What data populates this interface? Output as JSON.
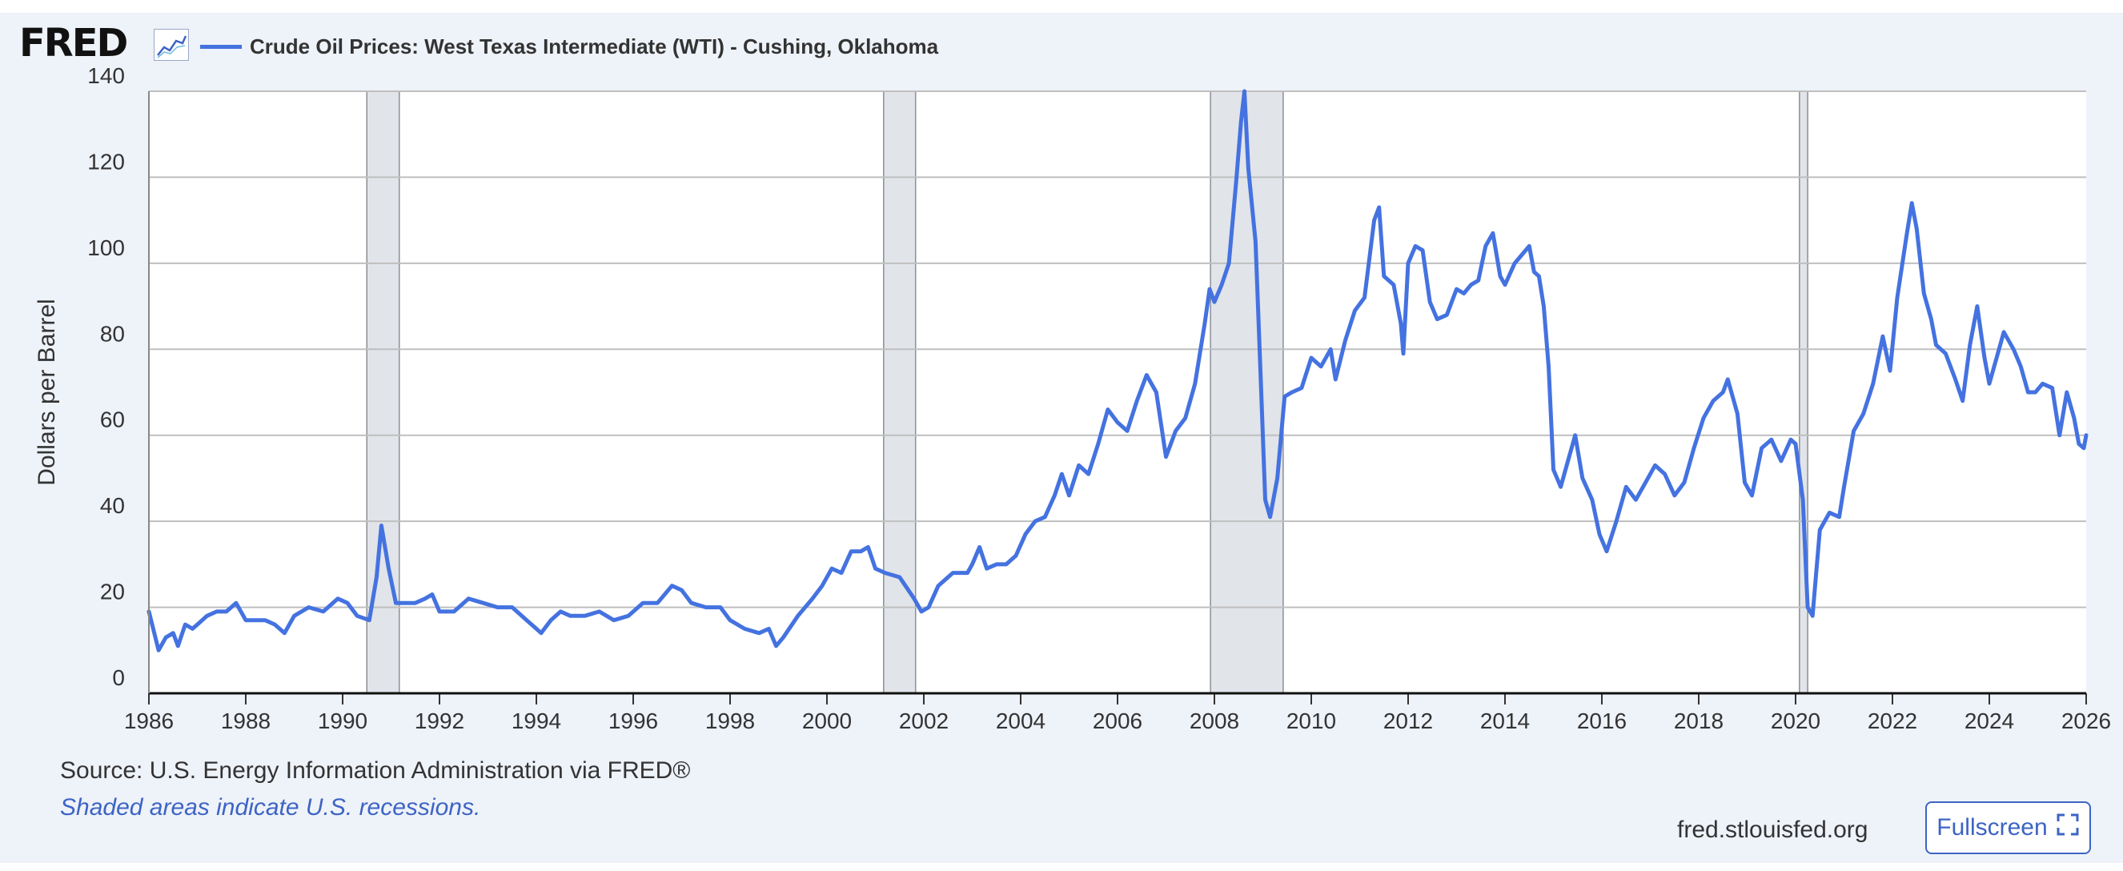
{
  "brand": {
    "logo_text": "FRED",
    "graph_icon": "line-graph-icon"
  },
  "colors": {
    "series": "#4472e0",
    "recession": "#e1e4e9",
    "background": "#eef2f9",
    "link": "#3d64c4"
  },
  "footer": {
    "source": "Source: U.S. Energy Information Administration via FRED®",
    "recession_note": "Shaded areas indicate U.S. recessions.",
    "site": "fred.stlouisfed.org",
    "fullscreen_label": "Fullscreen",
    "fullscreen_icon": "fullscreen-icon"
  },
  "chart_data": {
    "type": "line",
    "title": "",
    "ylabel": "Dollars per Barrel",
    "xlabel": "",
    "xlim": [
      1986,
      2026
    ],
    "ylim": [
      0,
      140
    ],
    "x_ticks": [
      "1986",
      "1988",
      "1990",
      "1992",
      "1994",
      "1996",
      "1998",
      "2000",
      "2002",
      "2004",
      "2006",
      "2008",
      "2010",
      "2012",
      "2014",
      "2016",
      "2018",
      "2020",
      "2022",
      "2024",
      "2026"
    ],
    "y_ticks": [
      "0",
      "20",
      "40",
      "60",
      "80",
      "100",
      "120",
      "140"
    ],
    "grid": true,
    "legend": "top-left",
    "recessions": [
      [
        1990.5,
        1991.17
      ],
      [
        2001.17,
        2001.83
      ],
      [
        2007.92,
        2009.42
      ],
      [
        2020.08,
        2020.25
      ]
    ],
    "series": [
      {
        "name": "Crude Oil Prices: West Texas Intermediate (WTI) - Cushing, Oklahoma",
        "points": [
          [
            1986.0,
            19
          ],
          [
            1986.2,
            10
          ],
          [
            1986.35,
            13
          ],
          [
            1986.5,
            14
          ],
          [
            1986.6,
            11
          ],
          [
            1986.75,
            16
          ],
          [
            1986.9,
            15
          ],
          [
            1987.0,
            16
          ],
          [
            1987.2,
            18
          ],
          [
            1987.4,
            19
          ],
          [
            1987.6,
            19
          ],
          [
            1987.8,
            21
          ],
          [
            1988.0,
            17
          ],
          [
            1988.2,
            17
          ],
          [
            1988.4,
            17
          ],
          [
            1988.6,
            16
          ],
          [
            1988.8,
            14
          ],
          [
            1989.0,
            18
          ],
          [
            1989.3,
            20
          ],
          [
            1989.6,
            19
          ],
          [
            1989.9,
            22
          ],
          [
            1990.1,
            21
          ],
          [
            1990.3,
            18
          ],
          [
            1990.55,
            17
          ],
          [
            1990.7,
            27
          ],
          [
            1990.8,
            39
          ],
          [
            1990.95,
            29
          ],
          [
            1991.1,
            21
          ],
          [
            1991.3,
            21
          ],
          [
            1991.5,
            21
          ],
          [
            1991.7,
            22
          ],
          [
            1991.85,
            23
          ],
          [
            1992.0,
            19
          ],
          [
            1992.3,
            19
          ],
          [
            1992.6,
            22
          ],
          [
            1992.9,
            21
          ],
          [
            1993.2,
            20
          ],
          [
            1993.5,
            20
          ],
          [
            1993.8,
            17
          ],
          [
            1994.0,
            15
          ],
          [
            1994.1,
            14
          ],
          [
            1994.3,
            17
          ],
          [
            1994.5,
            19
          ],
          [
            1994.7,
            18
          ],
          [
            1995.0,
            18
          ],
          [
            1995.3,
            19
          ],
          [
            1995.6,
            17
          ],
          [
            1995.9,
            18
          ],
          [
            1996.2,
            21
          ],
          [
            1996.5,
            21
          ],
          [
            1996.8,
            25
          ],
          [
            1997.0,
            24
          ],
          [
            1997.2,
            21
          ],
          [
            1997.5,
            20
          ],
          [
            1997.8,
            20
          ],
          [
            1998.0,
            17
          ],
          [
            1998.3,
            15
          ],
          [
            1998.6,
            14
          ],
          [
            1998.8,
            15
          ],
          [
            1998.95,
            11
          ],
          [
            1999.1,
            13
          ],
          [
            1999.4,
            18
          ],
          [
            1999.7,
            22
          ],
          [
            1999.9,
            25
          ],
          [
            2000.1,
            29
          ],
          [
            2000.3,
            28
          ],
          [
            2000.5,
            33
          ],
          [
            2000.7,
            33
          ],
          [
            2000.85,
            34
          ],
          [
            2001.0,
            29
          ],
          [
            2001.2,
            28
          ],
          [
            2001.5,
            27
          ],
          [
            2001.8,
            22
          ],
          [
            2001.95,
            19
          ],
          [
            2002.1,
            20
          ],
          [
            2002.3,
            25
          ],
          [
            2002.6,
            28
          ],
          [
            2002.9,
            28
          ],
          [
            2003.0,
            30
          ],
          [
            2003.15,
            34
          ],
          [
            2003.3,
            29
          ],
          [
            2003.5,
            30
          ],
          [
            2003.7,
            30
          ],
          [
            2003.9,
            32
          ],
          [
            2004.1,
            37
          ],
          [
            2004.3,
            40
          ],
          [
            2004.5,
            41
          ],
          [
            2004.7,
            46
          ],
          [
            2004.85,
            51
          ],
          [
            2005.0,
            46
          ],
          [
            2005.2,
            53
          ],
          [
            2005.4,
            51
          ],
          [
            2005.6,
            58
          ],
          [
            2005.8,
            66
          ],
          [
            2006.0,
            63
          ],
          [
            2006.2,
            61
          ],
          [
            2006.4,
            68
          ],
          [
            2006.6,
            74
          ],
          [
            2006.8,
            70
          ],
          [
            2007.0,
            55
          ],
          [
            2007.2,
            61
          ],
          [
            2007.4,
            64
          ],
          [
            2007.6,
            72
          ],
          [
            2007.8,
            86
          ],
          [
            2007.9,
            94
          ],
          [
            2008.0,
            91
          ],
          [
            2008.15,
            95
          ],
          [
            2008.3,
            100
          ],
          [
            2008.45,
            119
          ],
          [
            2008.55,
            133
          ],
          [
            2008.62,
            140
          ],
          [
            2008.7,
            122
          ],
          [
            2008.85,
            105
          ],
          [
            2008.95,
            75
          ],
          [
            2009.05,
            45
          ],
          [
            2009.15,
            41
          ],
          [
            2009.3,
            50
          ],
          [
            2009.45,
            69
          ],
          [
            2009.6,
            70
          ],
          [
            2009.8,
            71
          ],
          [
            2010.0,
            78
          ],
          [
            2010.2,
            76
          ],
          [
            2010.4,
            80
          ],
          [
            2010.5,
            73
          ],
          [
            2010.7,
            82
          ],
          [
            2010.9,
            89
          ],
          [
            2011.1,
            92
          ],
          [
            2011.3,
            110
          ],
          [
            2011.4,
            113
          ],
          [
            2011.5,
            97
          ],
          [
            2011.7,
            95
          ],
          [
            2011.85,
            86
          ],
          [
            2011.9,
            79
          ],
          [
            2012.0,
            100
          ],
          [
            2012.15,
            104
          ],
          [
            2012.3,
            103
          ],
          [
            2012.45,
            91
          ],
          [
            2012.6,
            87
          ],
          [
            2012.8,
            88
          ],
          [
            2013.0,
            94
          ],
          [
            2013.15,
            93
          ],
          [
            2013.3,
            95
          ],
          [
            2013.45,
            96
          ],
          [
            2013.6,
            104
          ],
          [
            2013.75,
            107
          ],
          [
            2013.9,
            97
          ],
          [
            2014.0,
            95
          ],
          [
            2014.2,
            100
          ],
          [
            2014.35,
            102
          ],
          [
            2014.5,
            104
          ],
          [
            2014.6,
            98
          ],
          [
            2014.7,
            97
          ],
          [
            2014.8,
            90
          ],
          [
            2014.9,
            76
          ],
          [
            2015.0,
            52
          ],
          [
            2015.15,
            48
          ],
          [
            2015.3,
            54
          ],
          [
            2015.45,
            60
          ],
          [
            2015.6,
            50
          ],
          [
            2015.8,
            45
          ],
          [
            2015.95,
            37
          ],
          [
            2016.1,
            33
          ],
          [
            2016.3,
            40
          ],
          [
            2016.5,
            48
          ],
          [
            2016.7,
            45
          ],
          [
            2016.9,
            49
          ],
          [
            2017.1,
            53
          ],
          [
            2017.3,
            51
          ],
          [
            2017.5,
            46
          ],
          [
            2017.7,
            49
          ],
          [
            2017.9,
            57
          ],
          [
            2018.1,
            64
          ],
          [
            2018.3,
            68
          ],
          [
            2018.5,
            70
          ],
          [
            2018.6,
            73
          ],
          [
            2018.8,
            65
          ],
          [
            2018.95,
            49
          ],
          [
            2019.1,
            46
          ],
          [
            2019.3,
            57
          ],
          [
            2019.5,
            59
          ],
          [
            2019.7,
            54
          ],
          [
            2019.9,
            59
          ],
          [
            2020.0,
            58
          ],
          [
            2020.15,
            45
          ],
          [
            2020.25,
            20
          ],
          [
            2020.35,
            18
          ],
          [
            2020.5,
            38
          ],
          [
            2020.7,
            42
          ],
          [
            2020.9,
            41
          ],
          [
            2021.0,
            48
          ],
          [
            2021.2,
            61
          ],
          [
            2021.4,
            65
          ],
          [
            2021.6,
            72
          ],
          [
            2021.8,
            83
          ],
          [
            2021.95,
            75
          ],
          [
            2022.1,
            92
          ],
          [
            2022.3,
            107
          ],
          [
            2022.4,
            114
          ],
          [
            2022.5,
            108
          ],
          [
            2022.65,
            93
          ],
          [
            2022.8,
            87
          ],
          [
            2022.9,
            81
          ],
          [
            2023.1,
            79
          ],
          [
            2023.3,
            73
          ],
          [
            2023.45,
            68
          ],
          [
            2023.6,
            81
          ],
          [
            2023.75,
            90
          ],
          [
            2023.9,
            78
          ],
          [
            2024.0,
            72
          ],
          [
            2024.15,
            78
          ],
          [
            2024.3,
            84
          ],
          [
            2024.5,
            80
          ],
          [
            2024.65,
            76
          ],
          [
            2024.8,
            70
          ],
          [
            2024.95,
            70
          ],
          [
            2025.1,
            72
          ],
          [
            2025.3,
            71
          ],
          [
            2025.45,
            60
          ],
          [
            2025.6,
            70
          ],
          [
            2025.75,
            64
          ],
          [
            2025.85,
            58
          ],
          [
            2025.95,
            57
          ],
          [
            2026.0,
            60
          ]
        ]
      }
    ]
  }
}
